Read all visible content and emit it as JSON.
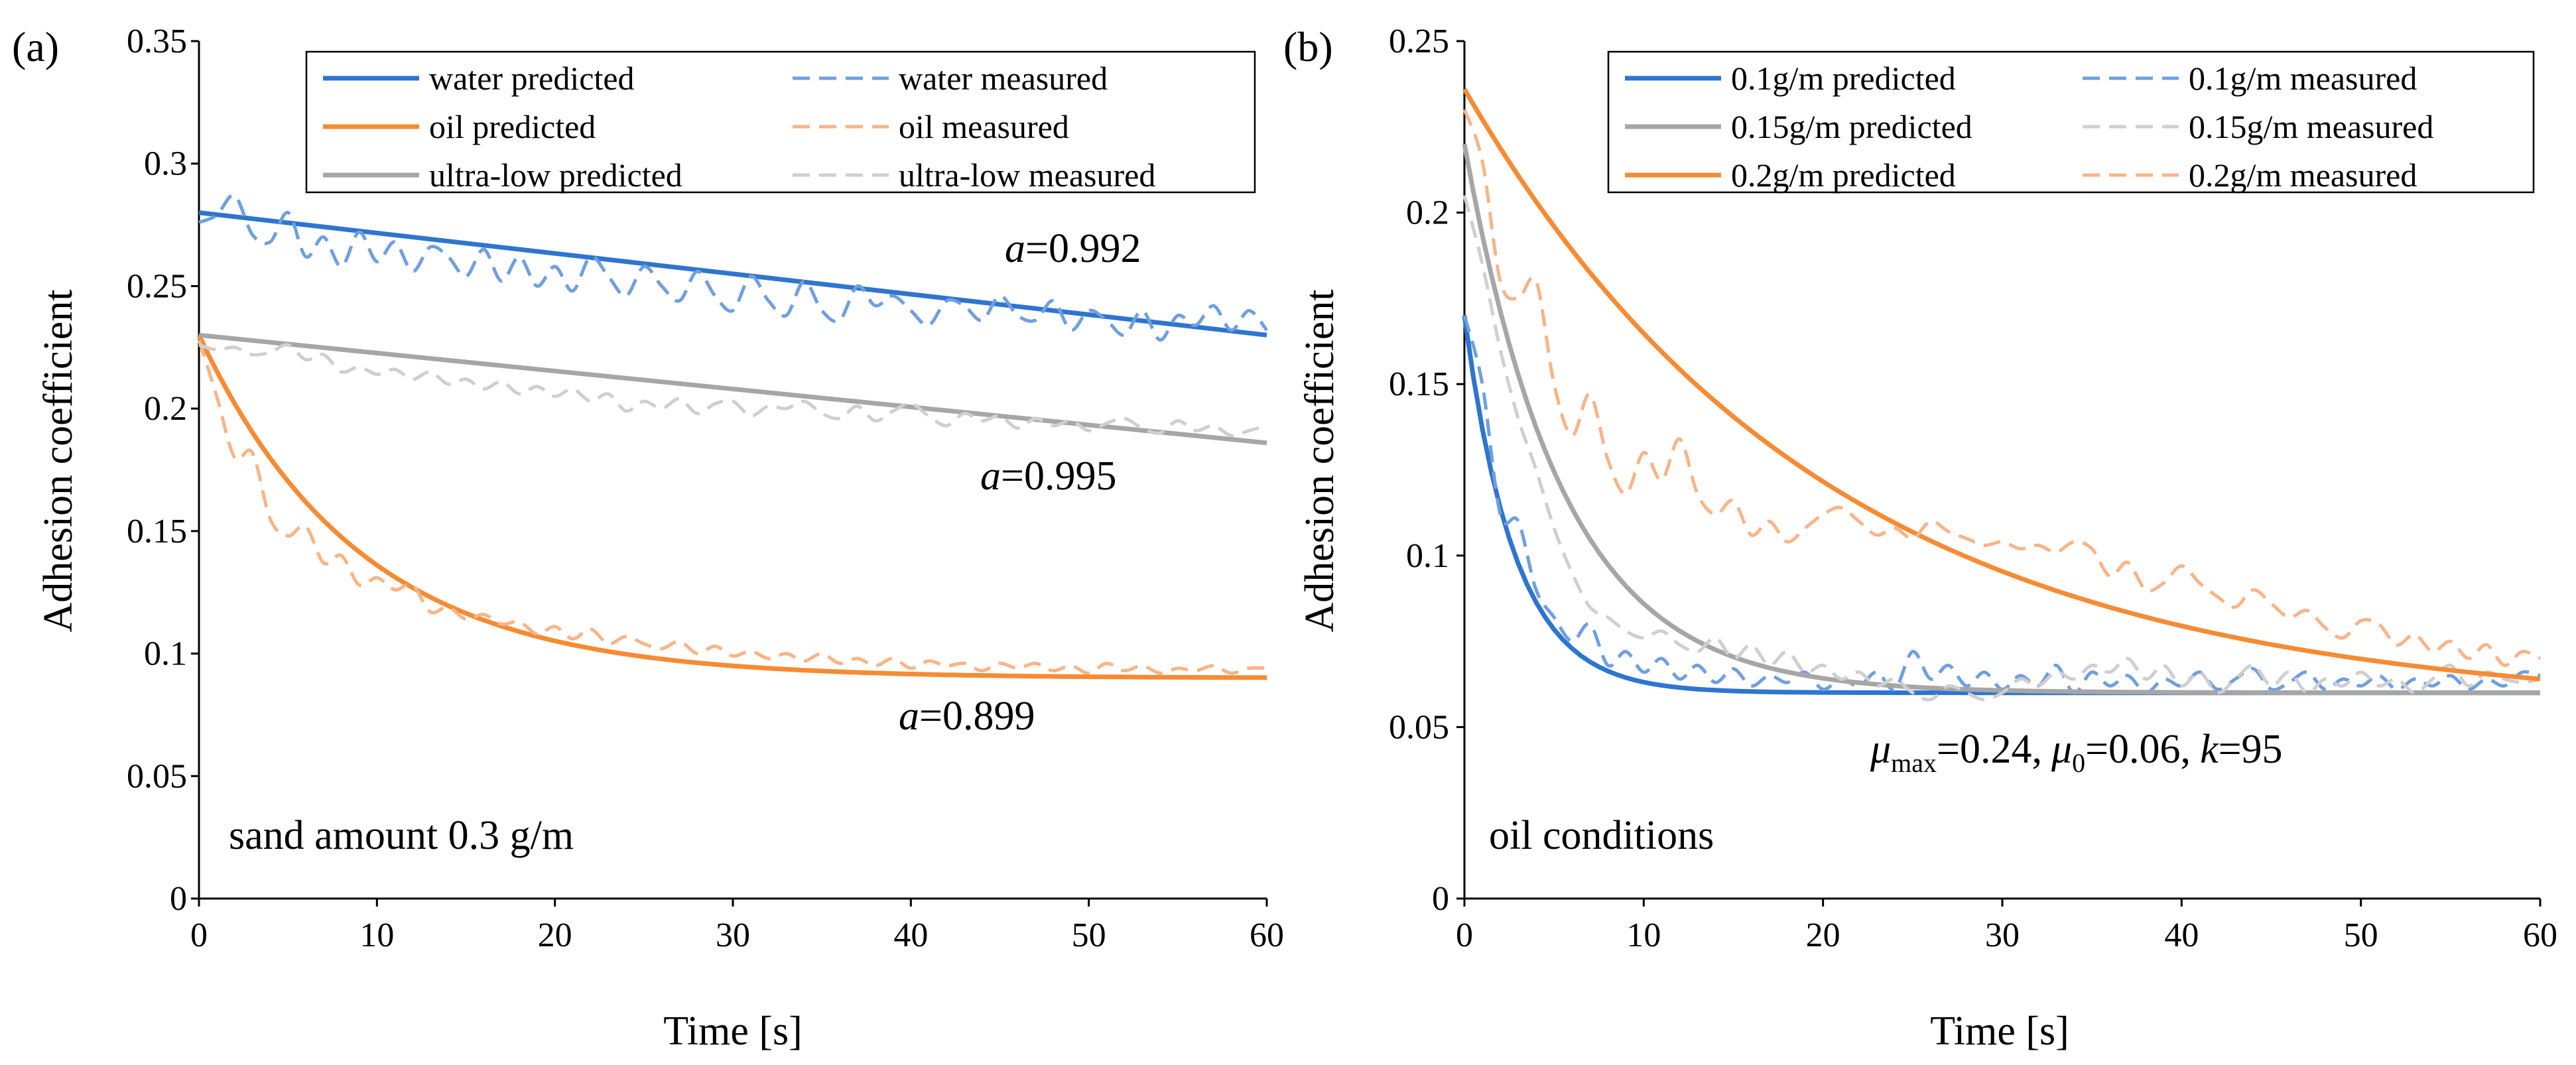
{
  "colors": {
    "water": "#2E75CF",
    "oil": "#F68B33",
    "ultralow": "#A6A6A6",
    "water_meas": "#6F9FE0",
    "oil_meas": "#F8B487",
    "ultralow_meas": "#CFCFCF"
  },
  "chart_data": [
    {
      "type": "line",
      "panel_label": "(a)",
      "xlabel": "Time [s]",
      "ylabel": "Adhesion coefficient",
      "xlim": [
        0,
        60
      ],
      "ylim": [
        0,
        0.35
      ],
      "xticks": [
        0,
        10,
        20,
        30,
        40,
        50,
        60
      ],
      "yticks": [
        0,
        0.05,
        0.1,
        0.15,
        0.2,
        0.25,
        0.3,
        0.35
      ],
      "ytick_labels": [
        "0",
        "0.05",
        "0.1",
        "0.15",
        "0.2",
        "0.25",
        "0.3",
        "0.35"
      ],
      "legend_placement": "top",
      "note": "sand amount 0.3 g/m",
      "annotations": [
        {
          "prefix": "a",
          "text": "=0.992",
          "x": 51,
          "y": 0.26
        },
        {
          "prefix": "a",
          "text": "=0.995",
          "x": 43.5,
          "y": 0.172
        },
        {
          "prefix": "a",
          "text": "=0.899",
          "x": 43.5,
          "y": 0.071
        }
      ],
      "series": [
        {
          "name": "water predicted",
          "style": "solid",
          "color_key": "water",
          "model": "linear",
          "start": 0.28,
          "end": 0.23
        },
        {
          "name": "water measured",
          "style": "dashed",
          "color_key": "water_meas",
          "x": [
            0,
            1,
            2,
            3,
            4,
            5,
            6,
            7,
            8,
            9,
            10,
            11,
            12,
            13,
            14,
            15,
            16,
            17,
            18,
            19,
            20,
            21,
            22,
            23,
            24,
            25,
            26,
            27,
            28,
            29,
            30,
            31,
            32,
            33,
            34,
            35,
            36,
            37,
            38,
            39,
            40,
            41,
            42,
            43,
            44,
            45,
            46,
            47,
            48,
            49,
            50,
            51,
            52,
            53,
            54,
            55,
            56,
            57,
            58,
            59,
            60
          ],
          "y": [
            0.276,
            0.279,
            0.287,
            0.271,
            0.268,
            0.28,
            0.262,
            0.27,
            0.258,
            0.272,
            0.26,
            0.268,
            0.256,
            0.266,
            0.262,
            0.254,
            0.265,
            0.252,
            0.262,
            0.25,
            0.258,
            0.248,
            0.262,
            0.254,
            0.246,
            0.258,
            0.25,
            0.244,
            0.256,
            0.246,
            0.24,
            0.254,
            0.244,
            0.238,
            0.252,
            0.24,
            0.236,
            0.25,
            0.242,
            0.246,
            0.24,
            0.234,
            0.244,
            0.242,
            0.236,
            0.246,
            0.238,
            0.236,
            0.244,
            0.232,
            0.24,
            0.236,
            0.23,
            0.24,
            0.228,
            0.238,
            0.234,
            0.242,
            0.232,
            0.24,
            0.232
          ]
        },
        {
          "name": "oil predicted",
          "style": "solid",
          "color_key": "oil",
          "model": "exp",
          "mu_start": 0.23,
          "mu_end": 0.09,
          "tau": 9
        },
        {
          "name": "oil measured",
          "style": "dashed",
          "color_key": "oil_meas",
          "x": [
            0,
            1,
            2,
            3,
            4,
            5,
            6,
            7,
            8,
            9,
            10,
            11,
            12,
            13,
            14,
            15,
            16,
            17,
            18,
            19,
            20,
            21,
            22,
            23,
            24,
            25,
            26,
            27,
            28,
            29,
            30,
            31,
            32,
            33,
            34,
            35,
            36,
            37,
            38,
            39,
            40,
            41,
            42,
            43,
            44,
            45,
            46,
            47,
            48,
            49,
            50,
            51,
            52,
            53,
            54,
            55,
            56,
            57,
            58,
            59,
            60
          ],
          "y": [
            0.228,
            0.205,
            0.18,
            0.182,
            0.155,
            0.148,
            0.152,
            0.137,
            0.14,
            0.128,
            0.131,
            0.126,
            0.128,
            0.117,
            0.119,
            0.114,
            0.116,
            0.112,
            0.113,
            0.108,
            0.111,
            0.106,
            0.11,
            0.104,
            0.107,
            0.104,
            0.102,
            0.105,
            0.1,
            0.103,
            0.099,
            0.101,
            0.098,
            0.1,
            0.097,
            0.1,
            0.096,
            0.098,
            0.095,
            0.098,
            0.094,
            0.097,
            0.095,
            0.096,
            0.093,
            0.096,
            0.094,
            0.096,
            0.093,
            0.095,
            0.092,
            0.096,
            0.093,
            0.095,
            0.092,
            0.094,
            0.093,
            0.095,
            0.092,
            0.094,
            0.094
          ]
        },
        {
          "name": "ultra-low predicted",
          "style": "solid",
          "color_key": "ultralow",
          "model": "linear",
          "start": 0.23,
          "end": 0.186
        },
        {
          "name": "ultra-low measured",
          "style": "dashed",
          "color_key": "ultralow_meas",
          "x": [
            0,
            1,
            2,
            3,
            4,
            5,
            6,
            7,
            8,
            9,
            10,
            11,
            12,
            13,
            14,
            15,
            16,
            17,
            18,
            19,
            20,
            21,
            22,
            23,
            24,
            25,
            26,
            27,
            28,
            29,
            30,
            31,
            32,
            33,
            34,
            35,
            36,
            37,
            38,
            39,
            40,
            41,
            42,
            43,
            44,
            45,
            46,
            47,
            48,
            49,
            50,
            51,
            52,
            53,
            54,
            55,
            56,
            57,
            58,
            59,
            60
          ],
          "y": [
            0.226,
            0.224,
            0.225,
            0.222,
            0.223,
            0.226,
            0.22,
            0.222,
            0.215,
            0.217,
            0.214,
            0.216,
            0.212,
            0.215,
            0.21,
            0.212,
            0.208,
            0.211,
            0.206,
            0.209,
            0.205,
            0.208,
            0.203,
            0.206,
            0.199,
            0.203,
            0.2,
            0.204,
            0.198,
            0.202,
            0.203,
            0.197,
            0.201,
            0.2,
            0.203,
            0.198,
            0.196,
            0.201,
            0.195,
            0.199,
            0.202,
            0.197,
            0.193,
            0.198,
            0.195,
            0.197,
            0.192,
            0.196,
            0.193,
            0.195,
            0.191,
            0.194,
            0.196,
            0.192,
            0.19,
            0.195,
            0.191,
            0.193,
            0.189,
            0.191,
            0.193
          ]
        }
      ]
    },
    {
      "type": "line",
      "panel_label": "(b)",
      "xlabel": "Time [s]",
      "ylabel": "Adhesion coefficient",
      "xlim": [
        0,
        60
      ],
      "ylim": [
        0,
        0.25
      ],
      "xticks": [
        0,
        10,
        20,
        30,
        40,
        50,
        60
      ],
      "yticks": [
        0,
        0.05,
        0.1,
        0.15,
        0.2,
        0.25
      ],
      "ytick_labels": [
        "0",
        "0.05",
        "0.1",
        "0.15",
        "0.2",
        "0.25"
      ],
      "legend_placement": "top",
      "note": "oil conditions",
      "params": {
        "mu_max_sym": "μ",
        "mu_max_sub": "max",
        "mu_max_val": "=0.24,",
        "mu_0_sym": "μ",
        "mu_0_sub": "0",
        "mu_0_val": "=0.06,",
        "k_sym": "k",
        "k_val": "=95"
      },
      "series": [
        {
          "name": "0.1g/m predicted",
          "style": "solid",
          "color_key": "water",
          "model": "exp",
          "mu_start": 0.17,
          "mu_end": 0.06,
          "tau": 2.8
        },
        {
          "name": "0.1g/m measured",
          "style": "dashed",
          "color_key": "water_meas",
          "x": [
            0,
            1,
            2,
            3,
            4,
            5,
            6,
            7,
            8,
            9,
            10,
            11,
            12,
            13,
            14,
            15,
            16,
            17,
            18,
            19,
            20,
            21,
            22,
            23,
            24,
            25,
            26,
            27,
            28,
            29,
            30,
            31,
            32,
            33,
            34,
            35,
            36,
            37,
            38,
            39,
            40,
            41,
            42,
            43,
            44,
            45,
            46,
            47,
            48,
            49,
            50,
            51,
            52,
            53,
            54,
            55,
            56,
            57,
            58,
            59,
            60
          ],
          "y": [
            0.17,
            0.15,
            0.112,
            0.11,
            0.09,
            0.082,
            0.075,
            0.08,
            0.068,
            0.072,
            0.066,
            0.07,
            0.064,
            0.068,
            0.063,
            0.067,
            0.062,
            0.065,
            0.063,
            0.066,
            0.061,
            0.064,
            0.062,
            0.066,
            0.061,
            0.072,
            0.064,
            0.068,
            0.062,
            0.066,
            0.061,
            0.065,
            0.062,
            0.068,
            0.06,
            0.066,
            0.062,
            0.065,
            0.06,
            0.064,
            0.062,
            0.066,
            0.061,
            0.064,
            0.067,
            0.061,
            0.063,
            0.066,
            0.061,
            0.064,
            0.062,
            0.065,
            0.061,
            0.064,
            0.062,
            0.065,
            0.061,
            0.064,
            0.062,
            0.066,
            0.065
          ]
        },
        {
          "name": "0.15g/m predicted",
          "style": "solid",
          "color_key": "ultralow",
          "model": "exp",
          "mu_start": 0.22,
          "mu_end": 0.06,
          "tau": 5.5
        },
        {
          "name": "0.15g/m measured",
          "style": "dashed",
          "color_key": "ultralow_meas",
          "x": [
            0,
            1,
            2,
            3,
            4,
            5,
            6,
            7,
            8,
            9,
            10,
            11,
            12,
            13,
            14,
            15,
            16,
            17,
            18,
            19,
            20,
            21,
            22,
            23,
            24,
            25,
            26,
            27,
            28,
            29,
            30,
            31,
            32,
            33,
            34,
            35,
            36,
            37,
            38,
            39,
            40,
            41,
            42,
            43,
            44,
            45,
            46,
            47,
            48,
            49,
            50,
            51,
            52,
            53,
            54,
            55,
            56,
            57,
            58,
            59,
            60
          ],
          "y": [
            0.205,
            0.185,
            0.16,
            0.14,
            0.125,
            0.108,
            0.095,
            0.085,
            0.082,
            0.078,
            0.076,
            0.078,
            0.074,
            0.072,
            0.076,
            0.07,
            0.074,
            0.068,
            0.072,
            0.066,
            0.068,
            0.064,
            0.066,
            0.062,
            0.064,
            0.06,
            0.058,
            0.062,
            0.06,
            0.058,
            0.06,
            0.064,
            0.062,
            0.066,
            0.064,
            0.068,
            0.066,
            0.07,
            0.064,
            0.068,
            0.062,
            0.066,
            0.06,
            0.064,
            0.068,
            0.062,
            0.066,
            0.06,
            0.064,
            0.062,
            0.066,
            0.062,
            0.064,
            0.06,
            0.064,
            0.068,
            0.062,
            0.066,
            0.064,
            0.063,
            0.064
          ]
        },
        {
          "name": "0.2g/m predicted",
          "style": "solid",
          "color_key": "oil",
          "model": "exp",
          "mu_start": 0.236,
          "mu_end": 0.055,
          "tau": 20
        },
        {
          "name": "0.2g/m measured",
          "style": "dashed",
          "color_key": "oil_meas",
          "x": [
            0,
            1,
            2,
            3,
            4,
            5,
            6,
            7,
            8,
            9,
            10,
            11,
            12,
            13,
            14,
            15,
            16,
            17,
            18,
            19,
            20,
            21,
            22,
            23,
            24,
            25,
            26,
            27,
            28,
            29,
            30,
            31,
            32,
            33,
            34,
            35,
            36,
            37,
            38,
            39,
            40,
            41,
            42,
            43,
            44,
            45,
            46,
            47,
            48,
            49,
            50,
            51,
            52,
            53,
            54,
            55,
            56,
            57,
            58,
            59,
            60
          ],
          "y": [
            0.23,
            0.215,
            0.18,
            0.175,
            0.18,
            0.15,
            0.135,
            0.147,
            0.128,
            0.118,
            0.13,
            0.122,
            0.134,
            0.118,
            0.112,
            0.116,
            0.106,
            0.11,
            0.104,
            0.108,
            0.112,
            0.114,
            0.11,
            0.106,
            0.108,
            0.105,
            0.11,
            0.107,
            0.105,
            0.103,
            0.104,
            0.102,
            0.103,
            0.101,
            0.104,
            0.102,
            0.094,
            0.098,
            0.09,
            0.092,
            0.097,
            0.092,
            0.088,
            0.085,
            0.09,
            0.086,
            0.082,
            0.084,
            0.079,
            0.076,
            0.081,
            0.08,
            0.074,
            0.077,
            0.072,
            0.075,
            0.07,
            0.074,
            0.068,
            0.072,
            0.07
          ]
        }
      ]
    }
  ]
}
